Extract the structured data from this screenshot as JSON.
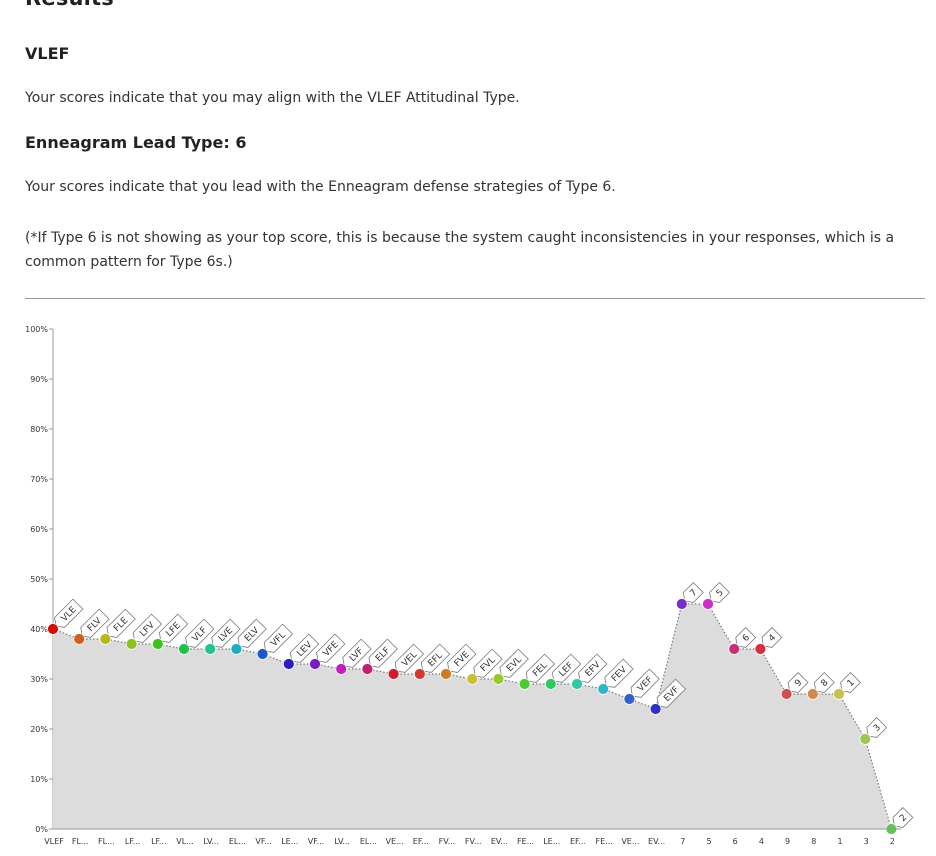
{
  "header": {
    "results_title": "Results",
    "type_title": "VLEF",
    "type_text": "Your scores indicate that you may align with the VLEF Attitudinal Type.",
    "lead_title": "Enneagram Lead Type: 6",
    "lead_text": "Your scores indicate that you lead with the Enneagram defense strategies of Type 6.",
    "note_text": "(*If Type 6 is not showing as your top score, this is because the system caught inconsistencies in your responses, which is a common pattern for Type 6s.)"
  },
  "chart_data": {
    "type": "area",
    "ylim": [
      0,
      100
    ],
    "ylabel": "",
    "xlabel": "",
    "y_ticks": [
      "0%",
      "10%",
      "20%",
      "30%",
      "40%",
      "50%",
      "60%",
      "70%",
      "80%",
      "90%",
      "100%"
    ],
    "grid": false,
    "legend": "none",
    "fill_color": "#dcdcdc",
    "line_color": "#777777",
    "points": [
      {
        "label": "VLE",
        "tick": "VLEF",
        "value": 40,
        "color": "#d40d0d"
      },
      {
        "label": "FLV",
        "tick": "FL...",
        "value": 38,
        "color": "#d0601a"
      },
      {
        "label": "FLE",
        "tick": "FL...",
        "value": 38,
        "color": "#b8b81a"
      },
      {
        "label": "LFV",
        "tick": "LF...",
        "value": 37,
        "color": "#8cc21e"
      },
      {
        "label": "LFE",
        "tick": "LF...",
        "value": 37,
        "color": "#3cc31e"
      },
      {
        "label": "VLF",
        "tick": "VL...",
        "value": 36,
        "color": "#1ec34a"
      },
      {
        "label": "LVE",
        "tick": "LV...",
        "value": 36,
        "color": "#1ec38e"
      },
      {
        "label": "ELV",
        "tick": "EL...",
        "value": 36,
        "color": "#1eaec3"
      },
      {
        "label": "VFL",
        "tick": "VF...",
        "value": 35,
        "color": "#1e58c3"
      },
      {
        "label": "LEV",
        "tick": "LE...",
        "value": 33,
        "color": "#2a1ec3"
      },
      {
        "label": "VFE",
        "tick": "VF...",
        "value": 33,
        "color": "#7a1ec3"
      },
      {
        "label": "LVF",
        "tick": "LV...",
        "value": 32,
        "color": "#c31ec3"
      },
      {
        "label": "ELF",
        "tick": "EL...",
        "value": 32,
        "color": "#c31e72"
      },
      {
        "label": "VEL",
        "tick": "VE...",
        "value": 31,
        "color": "#d41a2a"
      },
      {
        "label": "EFL",
        "tick": "EF...",
        "value": 31,
        "color": "#d43a2a"
      },
      {
        "label": "FVE",
        "tick": "FV...",
        "value": 31,
        "color": "#d07a2a"
      },
      {
        "label": "FVL",
        "tick": "FV...",
        "value": 30,
        "color": "#c8c030"
      },
      {
        "label": "EVL",
        "tick": "EV...",
        "value": 30,
        "color": "#96c830"
      },
      {
        "label": "FEL",
        "tick": "FE...",
        "value": 29,
        "color": "#4cc830"
      },
      {
        "label": "LEF",
        "tick": "LE...",
        "value": 29,
        "color": "#30c860"
      },
      {
        "label": "EFV",
        "tick": "EF...",
        "value": 29,
        "color": "#30c8a0"
      },
      {
        "label": "FEV",
        "tick": "FE...",
        "value": 28,
        "color": "#30b4c8"
      },
      {
        "label": "VEF",
        "tick": "VE...",
        "value": 26,
        "color": "#3062c8"
      },
      {
        "label": "EVF",
        "tick": "EV...",
        "value": 24,
        "color": "#3030c0"
      },
      {
        "label": "7",
        "tick": "7",
        "value": 45,
        "color": "#7a30c8"
      },
      {
        "label": "5",
        "tick": "5",
        "value": 45,
        "color": "#c830c8"
      },
      {
        "label": "6",
        "tick": "6",
        "value": 36,
        "color": "#c8307a"
      },
      {
        "label": "4",
        "tick": "4",
        "value": 36,
        "color": "#d43040"
      },
      {
        "label": "9",
        "tick": "9",
        "value": 27,
        "color": "#d05050"
      },
      {
        "label": "8",
        "tick": "8",
        "value": 27,
        "color": "#d08a50"
      },
      {
        "label": "1",
        "tick": "1",
        "value": 27,
        "color": "#c8c050"
      },
      {
        "label": "3",
        "tick": "3",
        "value": 18,
        "color": "#9ac850"
      },
      {
        "label": "2",
        "tick": "2",
        "value": 0,
        "color": "#5cc850"
      }
    ]
  }
}
